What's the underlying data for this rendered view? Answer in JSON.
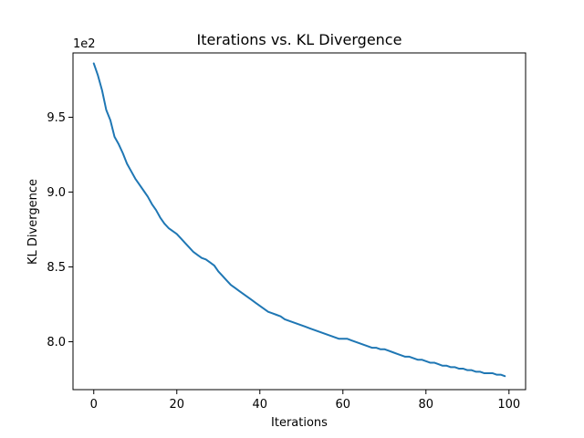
{
  "chart_data": {
    "type": "line",
    "title": "Iterations vs. KL Divergence",
    "xlabel": "Iterations",
    "ylabel": "KL Divergence",
    "y_offset_label": "1e2",
    "xlim": [
      -5,
      104
    ],
    "ylim": [
      7.68,
      9.93
    ],
    "x_ticks": [
      0,
      20,
      40,
      60,
      80,
      100
    ],
    "x_tick_labels": [
      "0",
      "20",
      "40",
      "60",
      "80",
      "100"
    ],
    "y_ticks": [
      8.0,
      8.5,
      9.0,
      9.5
    ],
    "y_tick_labels": [
      "8.0",
      "8.5",
      "9.0",
      "9.5"
    ],
    "grid": false,
    "series": [
      {
        "name": "KL Divergence",
        "color": "#1f77b4",
        "x": [
          0,
          1,
          2,
          3,
          4,
          5,
          6,
          7,
          8,
          9,
          10,
          11,
          12,
          13,
          14,
          15,
          16,
          17,
          18,
          19,
          20,
          21,
          22,
          23,
          24,
          25,
          26,
          27,
          28,
          29,
          30,
          31,
          32,
          33,
          34,
          35,
          36,
          37,
          38,
          39,
          40,
          41,
          42,
          43,
          44,
          45,
          46,
          47,
          48,
          49,
          50,
          51,
          52,
          53,
          54,
          55,
          56,
          57,
          58,
          59,
          60,
          61,
          62,
          63,
          64,
          65,
          66,
          67,
          68,
          69,
          70,
          71,
          72,
          73,
          74,
          75,
          76,
          77,
          78,
          79,
          80,
          81,
          82,
          83,
          84,
          85,
          86,
          87,
          88,
          89,
          90,
          91,
          92,
          93,
          94,
          95,
          96,
          97,
          98,
          99
        ],
        "values": [
          9.86,
          9.78,
          9.68,
          9.55,
          9.48,
          9.37,
          9.32,
          9.26,
          9.19,
          9.14,
          9.09,
          9.05,
          9.01,
          8.97,
          8.92,
          8.88,
          8.83,
          8.79,
          8.76,
          8.74,
          8.72,
          8.69,
          8.66,
          8.63,
          8.6,
          8.58,
          8.56,
          8.55,
          8.53,
          8.51,
          8.47,
          8.44,
          8.41,
          8.38,
          8.36,
          8.34,
          8.32,
          8.3,
          8.28,
          8.26,
          8.24,
          8.22,
          8.2,
          8.19,
          8.18,
          8.17,
          8.15,
          8.14,
          8.13,
          8.12,
          8.11,
          8.1,
          8.09,
          8.08,
          8.07,
          8.06,
          8.05,
          8.04,
          8.03,
          8.02,
          8.02,
          8.02,
          8.01,
          8.0,
          7.99,
          7.98,
          7.97,
          7.96,
          7.96,
          7.95,
          7.95,
          7.94,
          7.93,
          7.92,
          7.91,
          7.9,
          7.9,
          7.89,
          7.88,
          7.88,
          7.87,
          7.86,
          7.86,
          7.85,
          7.84,
          7.84,
          7.83,
          7.83,
          7.82,
          7.82,
          7.81,
          7.81,
          7.8,
          7.8,
          7.79,
          7.79,
          7.79,
          7.78,
          7.78,
          7.77
        ]
      }
    ]
  }
}
